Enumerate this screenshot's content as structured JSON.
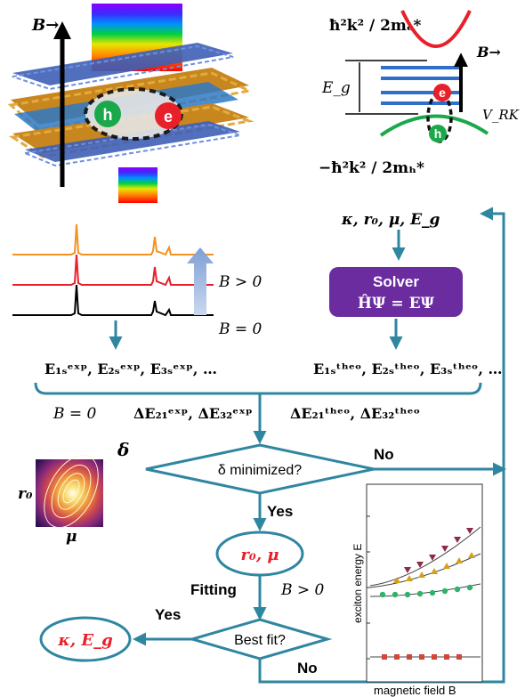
{
  "top_left": {
    "b_label": "B→",
    "hole": "h",
    "electron": "e"
  },
  "band": {
    "electron_mass_term": "ħ²k² / 2mₑ*",
    "hole_mass_term": "−ħ²k² / 2mₕ*",
    "gap": "E_g",
    "b_label": "B→",
    "potential": "V_RK",
    "electron": "e",
    "hole": "h"
  },
  "params": {
    "inputs": "κ, r₀, μ, E_g"
  },
  "solver": {
    "title": "Solver",
    "equation": "ĤΨ = EΨ"
  },
  "spectra": {
    "b_pos": "B > 0",
    "b_zero": "B = 0"
  },
  "energies": {
    "exp": "E₁ₛᵉˣᵖ, E₂ₛᵉˣᵖ, E₃ₛᵉˣᵖ, …",
    "theo": "E₁ₛᵗʰᵉᵒ, E₂ₛᵗʰᵉᵒ, E₃ₛᵗʰᵉᵒ, …",
    "b_zero": "B = 0",
    "delta_exp": "ΔE₂₁ᵉˣᵖ, ΔE₃₂ᵉˣᵖ",
    "delta_theo": "ΔE₂₁ᵗʰᵉᵒ, ΔE₃₂ᵗʰᵉᵒ"
  },
  "flow": {
    "delta": "δ",
    "decision1": "δ minimized?",
    "no1": "No",
    "yes1": "Yes",
    "result1": "r₀, μ",
    "fitting": "Fitting",
    "b_pos": "B > 0",
    "decision2": "Best fit?",
    "yes2": "Yes",
    "no2": "No",
    "result2": "κ, E_g"
  },
  "heatmap": {
    "ylabel": "r₀",
    "xlabel": "μ"
  },
  "plot": {
    "ylabel": "exciton energy E",
    "xlabel": "magnetic field B"
  },
  "colors": {
    "flow": "#2f86a0",
    "solver": "#6a2c9f",
    "red_text": "#e8202a",
    "electron": "#e8202a",
    "hole": "#1aa84a"
  }
}
